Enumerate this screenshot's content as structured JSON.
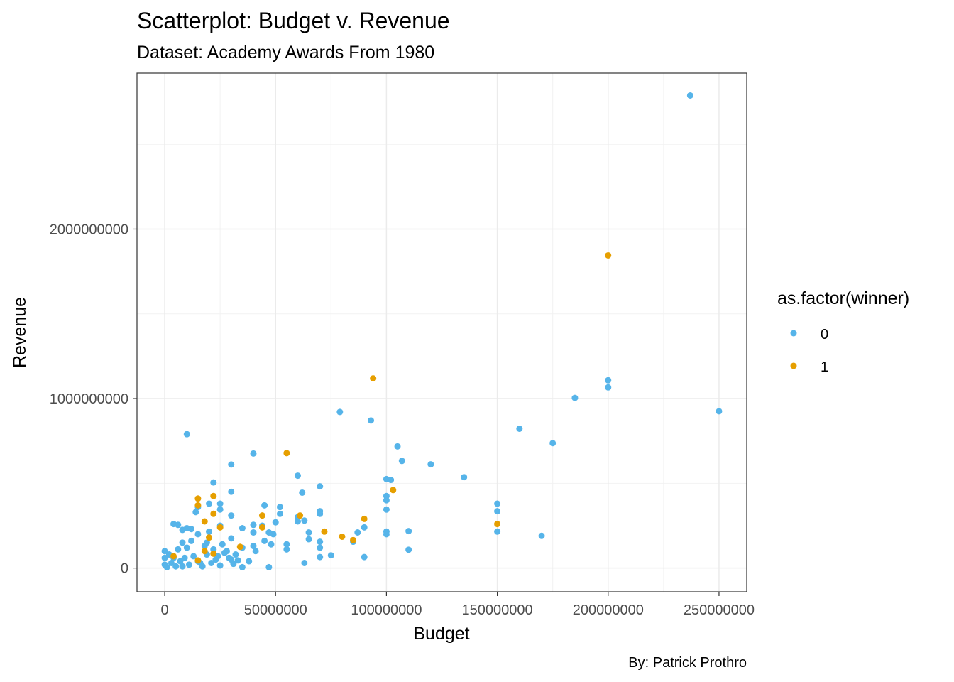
{
  "chart_data": {
    "type": "scatter",
    "title": "Scatterplot: Budget v. Revenue",
    "subtitle": "Dataset: Academy Awards From 1980",
    "caption": "By: Patrick Prothro",
    "xlabel": "Budget",
    "ylabel": "Revenue",
    "xlim": [
      -12500000,
      262500000
    ],
    "ylim": [
      -140000000,
      2920000000
    ],
    "x_ticks": [
      0,
      50000000,
      100000000,
      150000000,
      200000000,
      250000000
    ],
    "x_tick_labels": [
      "0",
      "50000000",
      "100000000",
      "150000000",
      "200000000",
      "250000000"
    ],
    "y_ticks": [
      0,
      1000000000,
      2000000000
    ],
    "y_tick_labels": [
      "0",
      "1000000000",
      "2000000000"
    ],
    "grid": true,
    "legend": {
      "title": "as.factor(winner)",
      "position": "right",
      "entries": [
        {
          "label": "0",
          "color": "#56B4E9"
        },
        {
          "label": "1",
          "color": "#E69F00"
        }
      ]
    },
    "series": [
      {
        "name": "0",
        "color": "#56B4E9",
        "points": [
          [
            237000000,
            2788000000
          ],
          [
            250000000,
            925000000
          ],
          [
            200000000,
            1108000000
          ],
          [
            200000000,
            1066000000
          ],
          [
            185000000,
            1004000000
          ],
          [
            175000000,
            737000000
          ],
          [
            170000000,
            190000000
          ],
          [
            160000000,
            822000000
          ],
          [
            150000000,
            380000000
          ],
          [
            150000000,
            335000000
          ],
          [
            150000000,
            215000000
          ],
          [
            135000000,
            536000000
          ],
          [
            120000000,
            612000000
          ],
          [
            110000000,
            218000000
          ],
          [
            110000000,
            108000000
          ],
          [
            107000000,
            632000000
          ],
          [
            105000000,
            718000000
          ],
          [
            102000000,
            520000000
          ],
          [
            100000000,
            525000000
          ],
          [
            100000000,
            425000000
          ],
          [
            100000000,
            400000000
          ],
          [
            100000000,
            345000000
          ],
          [
            100000000,
            215000000
          ],
          [
            100000000,
            200000000
          ],
          [
            93000000,
            871000000
          ],
          [
            90000000,
            240000000
          ],
          [
            90000000,
            65000000
          ],
          [
            87000000,
            210000000
          ],
          [
            85000000,
            155000000
          ],
          [
            79000000,
            921000000
          ],
          [
            75000000,
            75000000
          ],
          [
            70000000,
            482000000
          ],
          [
            70000000,
            335000000
          ],
          [
            70000000,
            320000000
          ],
          [
            70000000,
            155000000
          ],
          [
            70000000,
            120000000
          ],
          [
            70000000,
            65000000
          ],
          [
            65000000,
            210000000
          ],
          [
            65000000,
            170000000
          ],
          [
            63000000,
            280000000
          ],
          [
            60000000,
            545000000
          ],
          [
            62000000,
            445000000
          ],
          [
            60000000,
            300000000
          ],
          [
            60000000,
            275000000
          ],
          [
            63000000,
            30000000
          ],
          [
            55000000,
            140000000
          ],
          [
            55000000,
            110000000
          ],
          [
            52000000,
            360000000
          ],
          [
            52000000,
            320000000
          ],
          [
            50000000,
            270000000
          ],
          [
            49000000,
            200000000
          ],
          [
            47000000,
            210000000
          ],
          [
            48000000,
            140000000
          ],
          [
            47000000,
            5000000
          ],
          [
            45000000,
            370000000
          ],
          [
            45000000,
            160000000
          ],
          [
            44000000,
            250000000
          ],
          [
            41000000,
            100000000
          ],
          [
            40000000,
            676000000
          ],
          [
            40000000,
            255000000
          ],
          [
            40000000,
            210000000
          ],
          [
            40000000,
            130000000
          ],
          [
            38000000,
            40000000
          ],
          [
            35000000,
            235000000
          ],
          [
            35000000,
            120000000
          ],
          [
            35000000,
            5000000
          ],
          [
            30000000,
            611000000
          ],
          [
            30000000,
            450000000
          ],
          [
            30000000,
            310000000
          ],
          [
            30000000,
            175000000
          ],
          [
            30000000,
            50000000
          ],
          [
            25000000,
            380000000
          ],
          [
            25000000,
            345000000
          ],
          [
            25000000,
            250000000
          ],
          [
            22000000,
            505000000
          ],
          [
            20000000,
            380000000
          ],
          [
            20000000,
            215000000
          ],
          [
            19000000,
            150000000
          ],
          [
            10000000,
            790000000
          ],
          [
            15000000,
            360000000
          ],
          [
            14000000,
            330000000
          ],
          [
            15000000,
            200000000
          ],
          [
            12000000,
            230000000
          ],
          [
            10000000,
            235000000
          ],
          [
            8000000,
            225000000
          ],
          [
            6000000,
            255000000
          ],
          [
            4000000,
            260000000
          ],
          [
            8000000,
            150000000
          ],
          [
            6000000,
            110000000
          ],
          [
            4000000,
            60000000
          ],
          [
            2000000,
            80000000
          ],
          [
            0,
            100000000
          ],
          [
            0,
            60000000
          ],
          [
            0,
            20000000
          ],
          [
            1000000,
            5000000
          ],
          [
            3000000,
            30000000
          ],
          [
            5000000,
            10000000
          ],
          [
            7000000,
            40000000
          ],
          [
            9000000,
            60000000
          ],
          [
            11000000,
            20000000
          ],
          [
            13000000,
            70000000
          ],
          [
            15000000,
            40000000
          ],
          [
            17000000,
            10000000
          ],
          [
            19000000,
            80000000
          ],
          [
            21000000,
            30000000
          ],
          [
            23000000,
            50000000
          ],
          [
            25000000,
            15000000
          ],
          [
            27000000,
            90000000
          ],
          [
            29000000,
            60000000
          ],
          [
            31000000,
            25000000
          ],
          [
            33000000,
            45000000
          ],
          [
            10000000,
            120000000
          ],
          [
            12000000,
            160000000
          ],
          [
            18000000,
            130000000
          ],
          [
            22000000,
            110000000
          ],
          [
            26000000,
            140000000
          ],
          [
            28000000,
            100000000
          ],
          [
            32000000,
            80000000
          ],
          [
            16000000,
            30000000
          ],
          [
            8000000,
            10000000
          ],
          [
            24000000,
            70000000
          ]
        ]
      },
      {
        "name": "1",
        "color": "#E69F00",
        "points": [
          [
            200000000,
            1845000000
          ],
          [
            94000000,
            1119000000
          ],
          [
            55000000,
            678000000
          ],
          [
            103000000,
            460000000
          ],
          [
            22000000,
            425000000
          ],
          [
            15000000,
            410000000
          ],
          [
            15000000,
            370000000
          ],
          [
            22000000,
            320000000
          ],
          [
            18000000,
            275000000
          ],
          [
            44000000,
            310000000
          ],
          [
            61000000,
            310000000
          ],
          [
            90000000,
            290000000
          ],
          [
            150000000,
            260000000
          ],
          [
            44000000,
            240000000
          ],
          [
            72000000,
            215000000
          ],
          [
            25000000,
            240000000
          ],
          [
            80000000,
            185000000
          ],
          [
            85000000,
            165000000
          ],
          [
            20000000,
            180000000
          ],
          [
            34000000,
            125000000
          ],
          [
            18000000,
            100000000
          ],
          [
            22000000,
            85000000
          ],
          [
            4000000,
            70000000
          ],
          [
            15000000,
            45000000
          ]
        ]
      }
    ]
  }
}
